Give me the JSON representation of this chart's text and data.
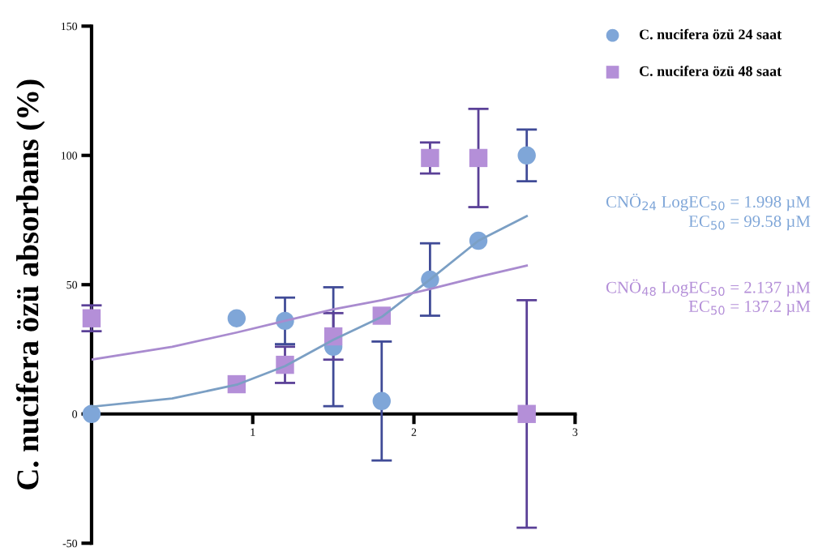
{
  "chart_data": {
    "type": "scatter",
    "ylabel": "C. nucifera özü absorbans (%)",
    "xlim": [
      0,
      3
    ],
    "xticks": [
      1,
      2,
      3
    ],
    "ylim": [
      -50,
      150
    ],
    "yticks": [
      -50,
      0,
      50,
      100,
      150
    ],
    "grid": false,
    "legend": "top right",
    "series": [
      {
        "name": "C. nucifera özü 24 saat",
        "marker": "circle",
        "color": "#7fa6d8",
        "x": [
          0,
          0.9,
          1.2,
          1.5,
          1.8,
          2.1,
          2.4,
          2.7
        ],
        "values": [
          0,
          37,
          36,
          26,
          5,
          52,
          67,
          100
        ],
        "errors": [
          null,
          null,
          9,
          23,
          23,
          14,
          null,
          10
        ]
      },
      {
        "name": "C. nucifera özü 48 saat",
        "marker": "square",
        "color": "#b48fd8",
        "x": [
          0,
          0.9,
          1.2,
          1.5,
          1.8,
          2.1,
          2.4,
          2.7
        ],
        "values": [
          37,
          11.5,
          19,
          30,
          38,
          99,
          99,
          0
        ],
        "errors": [
          5,
          null,
          7,
          9,
          null,
          6,
          19,
          44
        ]
      },
      {
        "type": "line",
        "color": "#7b9fc4",
        "x": [
          0,
          0.5,
          0.9,
          1.2,
          1.5,
          1.8,
          2.1,
          2.4,
          2.7
        ],
        "values": [
          2.8,
          6,
          11.3,
          18.5,
          28.7,
          37.5,
          52,
          67,
          76.5
        ]
      },
      {
        "type": "line",
        "color": "#a98bcf",
        "x": [
          0,
          0.5,
          0.9,
          1.2,
          1.5,
          1.8,
          2.1,
          2.4,
          2.7
        ],
        "values": [
          21,
          26,
          31.5,
          36,
          40.5,
          44,
          48.3,
          53,
          57.4
        ]
      }
    ],
    "annotations": [
      "CNÖ$_{24}$ LogEC$_{50}$ = 1.998 µM",
      "EC$_{50}$ = 99.58 µM",
      "CNÖ$_{48}$ LogEC$_{50}$ = 2.137 µM",
      "EC$_{50}$ = 137.2 µM"
    ]
  }
}
